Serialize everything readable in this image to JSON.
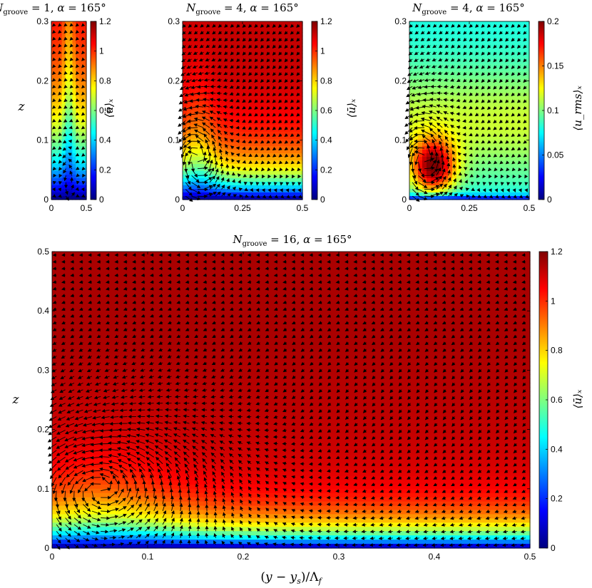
{
  "figure": {
    "background": "#ffffff"
  },
  "colormap": [
    "#00007f",
    "#0000ff",
    "#007fff",
    "#00ffff",
    "#7fff7f",
    "#ffff00",
    "#ff7f00",
    "#ff0000",
    "#7f0000"
  ],
  "chart_data": [
    {
      "type": "heatmap",
      "id": "p1",
      "title": "N_groove = 1, α = 165°",
      "xlabel": "",
      "ylabel": "z",
      "xlim": [
        0,
        0.5
      ],
      "ylim": [
        0,
        0.3
      ],
      "xticks": [
        "0",
        "0.5"
      ],
      "yticks": [
        "0",
        "0.1",
        "0.2",
        "0.3"
      ],
      "colorbar": {
        "label": "⟨ū⟩ₓ",
        "range": [
          0,
          1.2
        ],
        "ticks": [
          "0",
          "0.2",
          "0.4",
          "0.6",
          "0.8",
          "1",
          "1.2"
        ]
      },
      "field": {
        "quantity": "mean streamwise velocity",
        "u_inf": 1.12,
        "boundary_layer": 0.22,
        "wall_value": 0.0
      },
      "vectors": {
        "vortex_center": [
          0.25,
          0.03
        ],
        "vortex_radius": 0.04
      }
    },
    {
      "type": "heatmap",
      "id": "p2",
      "title": "N_groove = 4, α = 165°",
      "xlabel": "",
      "ylabel": "",
      "xlim": [
        0,
        0.5
      ],
      "ylim": [
        0,
        0.3
      ],
      "xticks": [
        "0",
        "0.25",
        "0.5"
      ],
      "yticks": [
        "0",
        "0.1",
        "0.2",
        "0.3"
      ],
      "colorbar": {
        "label": "⟨ū⟩ₓ",
        "range": [
          0,
          1.2
        ],
        "ticks": [
          "0",
          "0.2",
          "0.4",
          "0.6",
          "0.8",
          "1",
          "1.2"
        ]
      },
      "field": {
        "quantity": "mean streamwise velocity",
        "u_inf": 1.12,
        "boundary_layer": 0.08,
        "wall_value": 0.0
      },
      "vectors": {
        "vortex_center": [
          0.06,
          0.07
        ],
        "vortex_radius": 0.07
      }
    },
    {
      "type": "heatmap",
      "id": "p3",
      "title": "N_groove = 4, α = 165°",
      "xlabel": "",
      "ylabel": "",
      "xlim": [
        0,
        0.5
      ],
      "ylim": [
        0,
        0.3
      ],
      "xticks": [
        "0",
        "0.25",
        "0.5"
      ],
      "yticks": [
        "0",
        "0.1",
        "0.2",
        "0.3"
      ],
      "colorbar": {
        "label": "⟨u_rms⟩ₓ",
        "range": [
          0,
          0.2
        ],
        "ticks": [
          "0",
          "0.05",
          "0.1",
          "0.15",
          "0.2"
        ]
      },
      "field": {
        "quantity": "rms velocity",
        "peak": 0.19,
        "peak_location": [
          0.1,
          0.055
        ],
        "far_value": 0.08
      },
      "vectors": {
        "vortex_center": [
          0.06,
          0.07
        ],
        "vortex_radius": 0.07
      }
    },
    {
      "type": "heatmap",
      "id": "p4",
      "title": "N_groove = 16, α = 165°",
      "xlabel": "(y − y_s)/Λ_f",
      "ylabel": "z",
      "xlim": [
        0,
        0.5
      ],
      "ylim": [
        0,
        0.5
      ],
      "xticks": [
        "0",
        "0.1",
        "0.2",
        "0.3",
        "0.4",
        "0.5"
      ],
      "yticks": [
        "0",
        "0.1",
        "0.2",
        "0.3",
        "0.4",
        "0.5"
      ],
      "colorbar": {
        "label": "⟨ū⟩ₓ",
        "range": [
          0,
          1.2
        ],
        "ticks": [
          "0",
          "0.2",
          "0.4",
          "0.6",
          "0.8",
          "1",
          "1.2"
        ]
      },
      "field": {
        "quantity": "mean streamwise velocity",
        "u_inf": 1.15,
        "boundary_layer": 0.06,
        "wall_value": 0.0
      },
      "vectors": {
        "vortex_center": [
          0.05,
          0.1
        ],
        "vortex_radius": 0.09
      }
    }
  ]
}
